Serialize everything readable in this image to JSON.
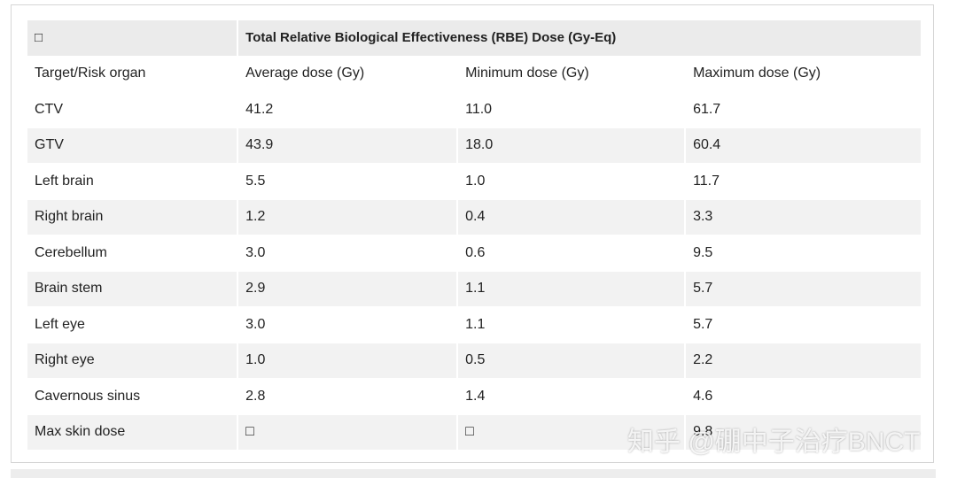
{
  "table": {
    "header": [
      "□",
      "Total Relative Biological Effectiveness (RBE) Dose (Gy-Eq)"
    ],
    "columns": [
      "Target/Risk organ",
      "Average dose (Gy)",
      "Minimum dose (Gy)",
      "Maximum dose (Gy)"
    ],
    "rows": [
      [
        "CTV",
        "41.2",
        "11.0",
        "61.7"
      ],
      [
        "GTV",
        "43.9",
        "18.0",
        "60.4"
      ],
      [
        "Left brain",
        "5.5",
        "1.0",
        "11.7"
      ],
      [
        "Right brain",
        "1.2",
        "0.4",
        "3.3"
      ],
      [
        "Cerebellum",
        "3.0",
        "0.6",
        "9.5"
      ],
      [
        "Brain stem",
        "2.9",
        "1.1",
        "5.7"
      ],
      [
        "Left eye",
        "3.0",
        "1.1",
        "5.7"
      ],
      [
        "Right eye",
        "1.0",
        "0.5",
        "2.2"
      ],
      [
        "Cavernous sinus",
        "2.8",
        "1.4",
        "4.6"
      ],
      [
        "Max skin dose",
        "□",
        "□",
        "9.8"
      ]
    ]
  },
  "watermark": "知乎 @硼中子治疗BNCT"
}
